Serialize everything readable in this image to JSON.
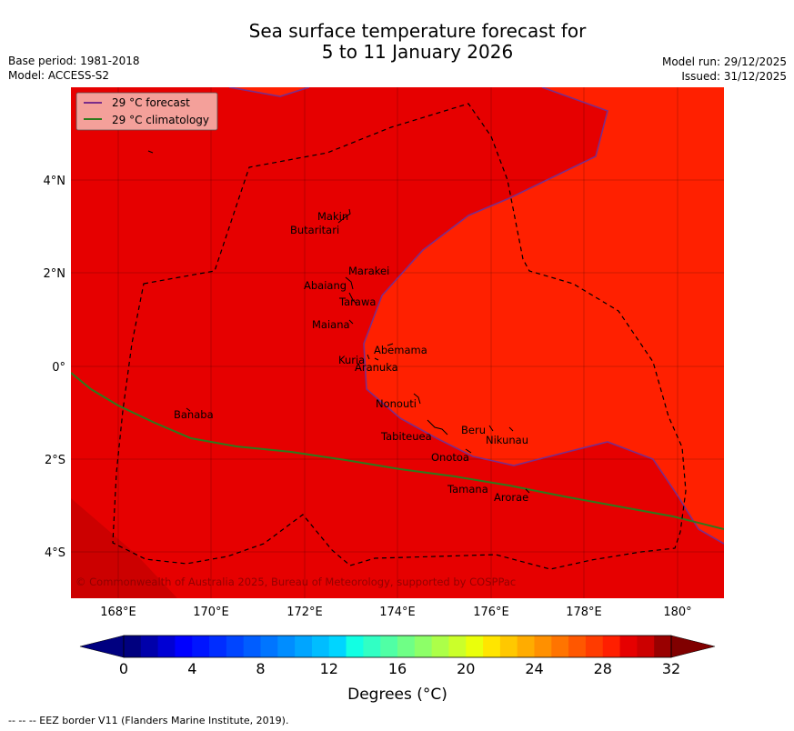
{
  "title": {
    "line1": "Sea surface temperature forecast for",
    "line2": "5 to 11 January 2026"
  },
  "meta_left": {
    "base_period": "Base period: 1981-2018",
    "model": "Model: ACCESS-S2"
  },
  "meta_right": {
    "model_run": "Model run: 29/12/2025",
    "issued": "Issued: 31/12/2025"
  },
  "legend": {
    "forecast": "29 °C  forecast",
    "climatology": "29 °C  climatology",
    "forecast_color": "#7a2d8a",
    "climatology_color": "#2d7a1c"
  },
  "colors": {
    "base_fill": "#e60000",
    "warm_fill": "#ff2000",
    "cool_fill": "#cc0000"
  },
  "axes": {
    "y_ticks": [
      "4°N",
      "2°N",
      "0°",
      "2°S",
      "4°S"
    ],
    "x_ticks": [
      "168°E",
      "170°E",
      "172°E",
      "174°E",
      "176°E",
      "178°E",
      "180°"
    ]
  },
  "places": [
    {
      "name": "Makin"
    },
    {
      "name": "Butaritari"
    },
    {
      "name": "Marakei"
    },
    {
      "name": "Abaiang"
    },
    {
      "name": "Tarawa"
    },
    {
      "name": "Maiana"
    },
    {
      "name": "Abemama"
    },
    {
      "name": "Kuria"
    },
    {
      "name": "Aranuka"
    },
    {
      "name": "Nonouti"
    },
    {
      "name": "Banaba"
    },
    {
      "name": "Beru"
    },
    {
      "name": "Nikunau"
    },
    {
      "name": "Tabiteuea"
    },
    {
      "name": "Onotoa"
    },
    {
      "name": "Tamana"
    },
    {
      "name": "Arorae"
    }
  ],
  "copyright": "© Commonwealth of Australia 2025, Bureau of Meteorology, supported by COSPPac",
  "colorbar": {
    "tick_labels": [
      "0",
      "4",
      "8",
      "12",
      "16",
      "20",
      "24",
      "28",
      "32"
    ],
    "min": 0,
    "max": 32,
    "step": 1,
    "title": "Degrees (°C)",
    "colors": [
      "#00007f",
      "#0000aa",
      "#0000d4",
      "#0000ff",
      "#0015ff",
      "#002dff",
      "#0045ff",
      "#005dff",
      "#0075ff",
      "#008dff",
      "#00a5ff",
      "#00bdff",
      "#00d5ff",
      "#12ffe3",
      "#31ffc4",
      "#50ffa5",
      "#6fff86",
      "#8dff68",
      "#acff49",
      "#cbff2a",
      "#eaff0b",
      "#ffe500",
      "#ffc800",
      "#ffac00",
      "#ff9000",
      "#ff7400",
      "#ff5700",
      "#ff3b00",
      "#ff1f00",
      "#e60000",
      "#cc0000",
      "#990000"
    ],
    "under_color": "#000080",
    "over_color": "#800000"
  },
  "footer": "--  --  -- EEZ border V11 (Flanders Marine Institute, 2019)."
}
